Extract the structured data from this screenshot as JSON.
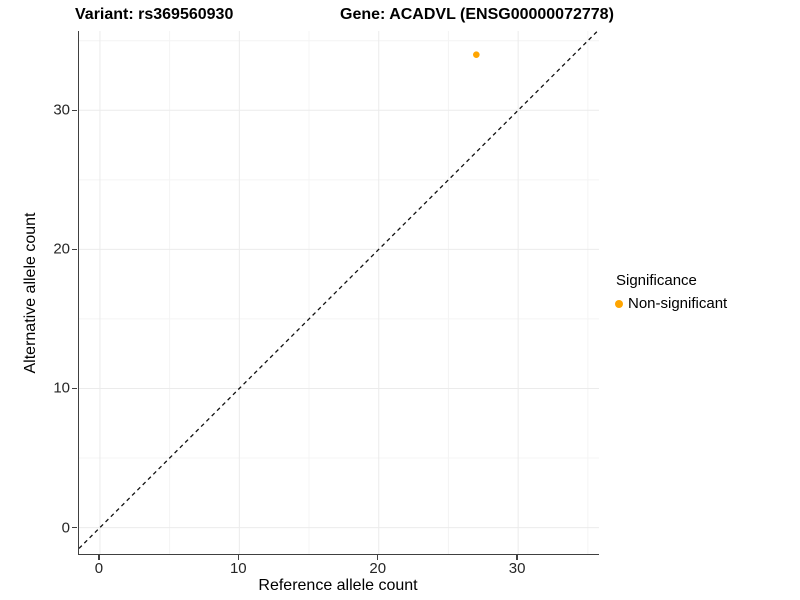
{
  "chart_data": {
    "type": "scatter",
    "title_left": "Variant: rs369560930",
    "title_right": "Gene: ACADVL (ENSG00000072778)",
    "xlabel": "Reference allele count",
    "ylabel": "Alternative allele count",
    "xlim": [
      -1.5,
      35.8
    ],
    "ylim": [
      -1.9,
      35.7
    ],
    "x_major_ticks": [
      0,
      10,
      20,
      30
    ],
    "y_major_ticks": [
      0,
      10,
      20,
      30
    ],
    "x_minor_gridlines": [
      5,
      15,
      25,
      35
    ],
    "y_minor_gridlines": [
      5,
      15,
      25,
      35
    ],
    "grid": "major and minor gridlines, very light gray, on white background",
    "axis_lines": "left and bottom only",
    "points": [
      {
        "x": 27,
        "y": 34,
        "series": "Non-significant"
      }
    ],
    "reference_line": {
      "kind": "identity y = x",
      "style": "dashed",
      "color": "#111111"
    },
    "legend": {
      "position": "right",
      "title": "Significance",
      "entries": [
        {
          "label": "Non-significant",
          "color": "#FFA500"
        }
      ]
    },
    "colors": {
      "point_nonsignificant": "#FFA500",
      "major_grid": "#EBEBEB",
      "minor_grid": "#F4F4F4",
      "axis_line": "#404040",
      "tick_text": "#262626",
      "title_text": "#000000"
    }
  }
}
